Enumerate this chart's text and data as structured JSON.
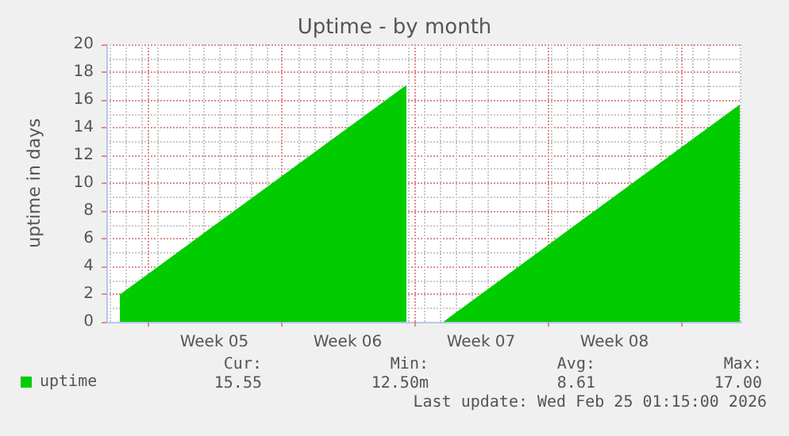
{
  "chart_data": {
    "type": "area",
    "title": "Uptime - by month",
    "ylabel": "uptime in days",
    "xlim": [
      "2026-01-23T20:00",
      "2026-02-26T04:00"
    ],
    "xticks": [
      {
        "value": "2026-01-26",
        "label": null
      },
      {
        "value": "2026-01-29T12:00",
        "label": "Week 05"
      },
      {
        "value": "2026-02-02",
        "label": null
      },
      {
        "value": "2026-02-05T12:00",
        "label": "Week 06"
      },
      {
        "value": "2026-02-09",
        "label": null
      },
      {
        "value": "2026-02-12T12:00",
        "label": "Week 07"
      },
      {
        "value": "2026-02-16",
        "label": null
      },
      {
        "value": "2026-02-19T12:00",
        "label": "Week 08"
      },
      {
        "value": "2026-02-23",
        "label": null
      }
    ],
    "ylim": [
      0,
      20
    ],
    "yticks": [
      0,
      2,
      4,
      6,
      8,
      10,
      12,
      14,
      16,
      18,
      20
    ],
    "grid": true,
    "legend": "bottom left",
    "series": [
      {
        "name": "uptime",
        "color": "#00cc00",
        "x": [
          "2026-01-24T13:00",
          "2026-02-08T14:00",
          "2026-02-08T14:15",
          "2026-02-10T13:45",
          "2026-02-10T14:00",
          "2026-02-26T02:00"
        ],
        "values": [
          1.9,
          17.0,
          null,
          null,
          0,
          15.6
        ]
      }
    ],
    "annotations": [
      "Cur:",
      "Min:",
      "Avg:",
      "Max:",
      "15.55",
      "12.50m",
      "8.61",
      "17.00",
      "Last update: Wed Feb 25 01:15:00 2026"
    ]
  }
}
